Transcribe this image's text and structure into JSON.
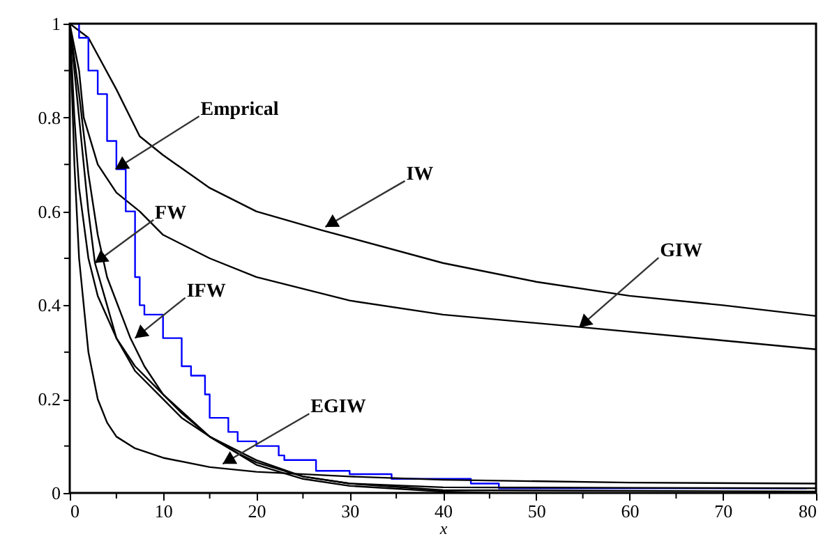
{
  "chart_data": {
    "type": "line",
    "xlabel": "x",
    "xlim": [
      0,
      80
    ],
    "ylim": [
      0,
      1
    ],
    "xticks": [
      0,
      {
        "value": 5,
        "label": null
      },
      10,
      {
        "value": 15,
        "label": null
      },
      20,
      {
        "value": 25,
        "label": null
      },
      30,
      {
        "value": 35,
        "label": null
      },
      40,
      {
        "value": 45,
        "label": null
      },
      50,
      {
        "value": 55,
        "label": null
      },
      60,
      {
        "value": 65,
        "label": null
      },
      70,
      {
        "value": 75,
        "label": null
      },
      80
    ],
    "yticks": [
      0,
      {
        "value": 0.1,
        "label": null
      },
      0.2,
      {
        "value": 0.3,
        "label": null
      },
      0.4,
      {
        "value": 0.5,
        "label": null
      },
      0.6,
      {
        "value": 0.7,
        "label": null
      },
      0.8,
      {
        "value": 0.9,
        "label": null
      },
      1
    ],
    "grid": false,
    "marker": "none",
    "line_style": "solid",
    "series": [
      {
        "type": "line",
        "color": "#000000",
        "x": [
          0,
          2,
          5,
          7.5,
          10,
          15,
          20,
          27,
          40,
          50,
          60,
          70,
          80
        ],
        "values": [
          1,
          0.97,
          0.86,
          0.76,
          0.72,
          0.65,
          0.6,
          0.56,
          0.49,
          0.45,
          0.42,
          0.4,
          0.377
        ]
      },
      {
        "type": "line",
        "color": "#000000",
        "x": [
          0,
          1,
          1.5,
          3,
          5,
          7.5,
          10,
          15,
          20,
          30,
          40,
          55,
          70,
          80
        ],
        "values": [
          1,
          0.9,
          0.8,
          0.7,
          0.64,
          0.6,
          0.55,
          0.5,
          0.46,
          0.41,
          0.38,
          0.353,
          0.325,
          0.306
        ]
      },
      {
        "type": "step",
        "color": "#0000ff",
        "x": [
          0,
          1,
          2,
          3,
          4,
          5,
          6,
          7,
          7.5,
          8,
          10,
          12,
          13,
          14.5,
          15,
          17,
          18,
          20,
          22.4,
          23,
          26.4,
          30,
          34.5,
          43,
          46,
          79
        ],
        "values": [
          1,
          0.97,
          0.9,
          0.85,
          0.75,
          0.69,
          0.6,
          0.46,
          0.4,
          0.38,
          0.33,
          0.27,
          0.25,
          0.21,
          0.16,
          0.13,
          0.11,
          0.1,
          0.08,
          0.07,
          0.047,
          0.04,
          0.03,
          0.02,
          0.01,
          0.01
        ]
      },
      {
        "type": "line",
        "color": "#000000",
        "x": [
          0,
          0.5,
          1,
          2,
          3,
          4,
          5,
          7,
          10,
          15,
          20,
          30,
          40,
          60,
          80
        ],
        "values": [
          1,
          0.7,
          0.5,
          0.3,
          0.2,
          0.15,
          0.12,
          0.095,
          0.075,
          0.055,
          0.045,
          0.035,
          0.028,
          0.022,
          0.02
        ]
      },
      {
        "type": "line",
        "color": "#000000",
        "x": [
          0,
          1,
          2,
          2.7,
          4,
          5,
          7,
          10,
          12,
          15,
          20,
          25,
          30,
          40,
          60,
          80
        ],
        "values": [
          1,
          0.8,
          0.6,
          0.49,
          0.4,
          0.33,
          0.26,
          0.2,
          0.16,
          0.12,
          0.07,
          0.035,
          0.02,
          0.012,
          0.011,
          0.01
        ]
      },
      {
        "type": "line",
        "color": "#000000",
        "x": [
          0,
          1,
          2,
          3,
          4,
          6.5,
          8,
          10,
          12,
          15,
          18,
          20,
          25,
          30,
          40,
          80
        ],
        "values": [
          1,
          0.85,
          0.68,
          0.55,
          0.46,
          0.33,
          0.27,
          0.21,
          0.17,
          0.12,
          0.085,
          0.065,
          0.035,
          0.02,
          0.006,
          0.003
        ]
      },
      {
        "type": "line",
        "color": "#000000",
        "x": [
          0,
          0.5,
          1,
          2,
          3,
          5,
          7,
          10,
          15,
          20,
          25,
          30,
          40,
          45
        ],
        "values": [
          1,
          0.8,
          0.65,
          0.5,
          0.42,
          0.33,
          0.27,
          0.21,
          0.12,
          0.06,
          0.03,
          0.015,
          0.003,
          0
        ]
      }
    ],
    "annotations": [
      {
        "text": "Emprical",
        "x": 4.9,
        "y": 0.69
      },
      {
        "text": "IW",
        "x": 27.4,
        "y": 0.567
      },
      {
        "text": "FW",
        "x": 2.7,
        "y": 0.49
      },
      {
        "text": "IFW",
        "x": 7,
        "y": 0.33
      },
      {
        "text": "GIW",
        "x": 54.6,
        "y": 0.353
      },
      {
        "text": "EGIW",
        "x": 16.4,
        "y": 0.062
      }
    ]
  }
}
